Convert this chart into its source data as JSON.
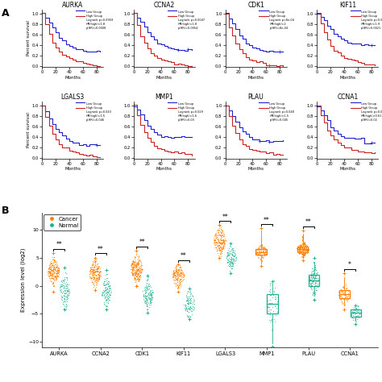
{
  "panel_A_genes": [
    "AURKA",
    "CCNA2",
    "CDK1",
    "KIF11",
    "LGALS3",
    "MMP1",
    "PLAU",
    "CCNA1"
  ],
  "panel_B_genes": [
    "AURKA",
    "CCNA2",
    "CDK1",
    "KIF11",
    "LGALS3",
    "MMP1",
    "PLAU",
    "CCNA1"
  ],
  "cancer_color": "#FF8000",
  "normal_color": "#20B090",
  "low_group_color": "#2222CC",
  "high_group_color": "#CC2222",
  "ylabel_B": "Expression level (log2)",
  "ylim_B": [
    -11,
    13
  ],
  "yticks_B": [
    -10,
    -5,
    0,
    5,
    10
  ],
  "significance": [
    "**",
    "**",
    "**",
    "**",
    "**",
    "**",
    "**",
    "*"
  ],
  "cancer_medians": [
    2.5,
    2.3,
    3.0,
    1.8,
    8.0,
    6.0,
    6.5,
    -1.5
  ],
  "normal_medians": [
    -0.8,
    -1.0,
    -1.5,
    -3.2,
    5.0,
    -3.2,
    1.0,
    -4.8
  ],
  "cancer_q1": [
    1.5,
    1.3,
    2.0,
    0.8,
    7.0,
    5.5,
    6.0,
    -2.2
  ],
  "cancer_q3": [
    3.2,
    3.0,
    4.0,
    2.5,
    9.0,
    6.5,
    7.0,
    -0.8
  ],
  "normal_q1": [
    -2.0,
    -2.0,
    -2.5,
    -4.0,
    4.2,
    -5.0,
    0.0,
    -5.5
  ],
  "normal_q3": [
    0.3,
    0.0,
    -0.5,
    -2.0,
    5.8,
    -1.5,
    2.0,
    -4.2
  ],
  "cancer_whislo": [
    -0.5,
    -0.3,
    0.5,
    -0.5,
    5.5,
    4.0,
    5.0,
    -3.5
  ],
  "cancer_whishi": [
    5.2,
    4.5,
    5.8,
    3.5,
    10.2,
    9.8,
    9.2,
    1.5
  ],
  "normal_whislo": [
    -3.5,
    -3.8,
    -4.2,
    -5.5,
    2.8,
    -10.2,
    -1.8,
    -6.2
  ],
  "normal_whishi": [
    2.5,
    2.2,
    1.0,
    -1.0,
    7.0,
    0.5,
    4.2,
    -4.0
  ],
  "cancer_outliers_low": [
    -1.0,
    -0.8,
    0.0,
    -1.0,
    5.0,
    3.5,
    4.5,
    -4.2
  ],
  "cancer_outliers_high": [
    5.8,
    5.0,
    6.2,
    3.8,
    10.8,
    10.2,
    9.8,
    2.2
  ],
  "normal_outliers_low": [
    -4.2,
    -4.2,
    -4.8,
    -6.0,
    2.2,
    -10.8,
    -2.5,
    -6.8
  ],
  "normal_outliers_high": [
    3.2,
    2.8,
    1.8,
    -0.5,
    7.5,
    0.8,
    5.0,
    -3.5
  ],
  "km_logrank": [
    "p=0.0959",
    "p=0.0047",
    "p=8e-04",
    "p=0.0017",
    "p=0.043",
    "p=0.029",
    "p=0.048",
    "p=0.016"
  ],
  "km_hr": [
    "1.8",
    "1.8",
    "2",
    "1.9",
    "1.5",
    "1.6",
    "1.5",
    "0.61"
  ],
  "km_phr": [
    "0.0008",
    "0.0054",
    "8e-04",
    "0.0021",
    "0.046",
    "0.03",
    "0.045",
    "0.02"
  ],
  "box_genes": [
    "MMP1",
    "PLAU",
    "CCNA1"
  ],
  "n_cancer_pts": [
    200,
    180,
    220,
    160,
    180,
    80,
    200,
    80
  ],
  "n_normal_pts": [
    100,
    100,
    120,
    90,
    100,
    50,
    120,
    50
  ]
}
